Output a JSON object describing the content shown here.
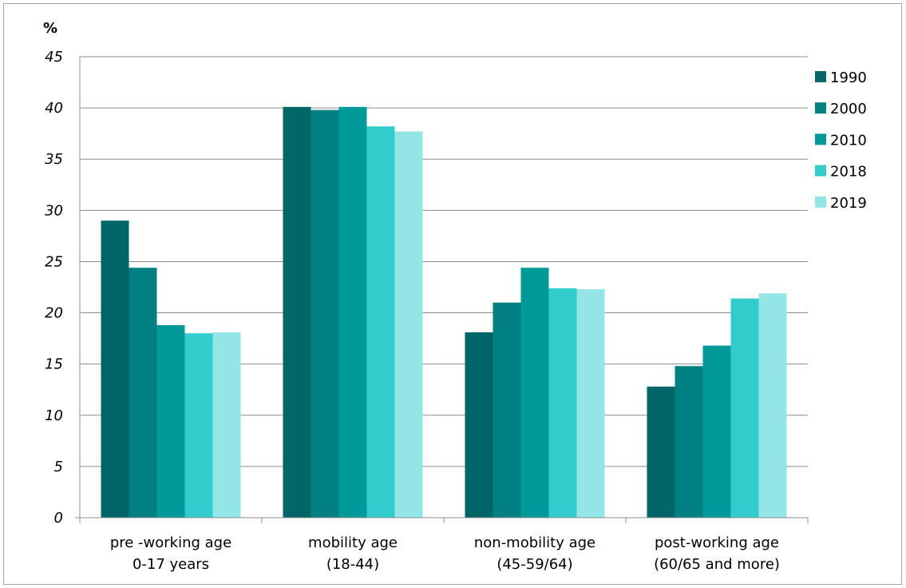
{
  "chart_data": {
    "type": "bar",
    "ylabel": "%",
    "ylim": [
      0,
      45
    ],
    "y_ticks": [
      "0",
      "5",
      "10",
      "15",
      "20",
      "25",
      "30",
      "35",
      "40",
      "45"
    ],
    "grid": true,
    "legend_position": "right",
    "categories": [
      [
        "pre -working age",
        "0-17 years"
      ],
      [
        "mobility age",
        "(18-44)"
      ],
      [
        "non-mobility age",
        "(45-59/64)"
      ],
      [
        "post-working age",
        "(60/65 and more)"
      ]
    ],
    "series": [
      {
        "name": "1990",
        "color": "#006666",
        "values": [
          29.0,
          40.1,
          18.1,
          12.8
        ]
      },
      {
        "name": "2000",
        "color": "#008080",
        "values": [
          24.4,
          39.8,
          21.0,
          14.8
        ]
      },
      {
        "name": "2010",
        "color": "#009999",
        "values": [
          18.8,
          40.1,
          24.4,
          16.8
        ]
      },
      {
        "name": "2018",
        "color": "#33CCCC",
        "values": [
          18.0,
          38.2,
          22.4,
          21.4
        ]
      },
      {
        "name": "2019",
        "color": "#94E6E6",
        "values": [
          18.1,
          37.7,
          22.3,
          21.9
        ]
      }
    ]
  }
}
